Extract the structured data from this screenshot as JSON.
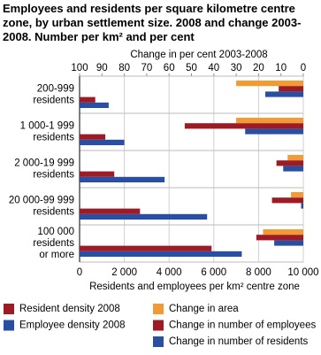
{
  "chart_data": {
    "type": "bar",
    "orientation": "horizontal",
    "title": "Employees and residents per square kilometre centre zone, by urban settlement size. 2008 and change 2003-2008. Number per km² and per cent",
    "categories": [
      [
        "200-999",
        "residents"
      ],
      [
        "1 000-1 999",
        "residents"
      ],
      [
        "2 000-19 999",
        "residents"
      ],
      [
        "20 000-99 999",
        "residents"
      ],
      [
        "100 000",
        "residents",
        "or more"
      ]
    ],
    "xlabel": "Residents and employees per km² centre zone",
    "x2label": "Change in per cent 2003-2008",
    "xlim": [
      0,
      10000
    ],
    "xticks": [
      0,
      {
        "value": 2000,
        "label": "2 000"
      },
      {
        "value": 4000,
        "label": "4 000"
      },
      {
        "value": 6000,
        "label": "6 000"
      },
      {
        "value": 8000,
        "label": "8 000"
      },
      {
        "value": 10000,
        "label": "10 000"
      }
    ],
    "x2lim": [
      100,
      0
    ],
    "x2ticks": [
      100,
      90,
      80,
      70,
      60,
      50,
      40,
      30,
      20,
      10,
      0
    ],
    "grid": true,
    "series": [
      {
        "name": "Change in area",
        "color": "#f39a35",
        "axis": "x2",
        "values": [
          30,
          30,
          7,
          5.5,
          18
        ]
      },
      {
        "name": "Change in number of employees",
        "color": "#9e1b26",
        "axis": "x2",
        "values": [
          11,
          53,
          12,
          14,
          21
        ]
      },
      {
        "name": "Change in number of residents",
        "color": "#2a4fa0",
        "axis": "x2",
        "values": [
          17,
          26,
          9,
          1,
          13
        ]
      },
      {
        "name": "Resident density 2008",
        "color": "#9e1b26",
        "axis": "x",
        "values": [
          700,
          1150,
          1550,
          2700,
          5900
        ]
      },
      {
        "name": "Employee density 2008",
        "color": "#2a4fa0",
        "axis": "x",
        "values": [
          1300,
          2000,
          3800,
          5700,
          7250
        ]
      }
    ]
  }
}
